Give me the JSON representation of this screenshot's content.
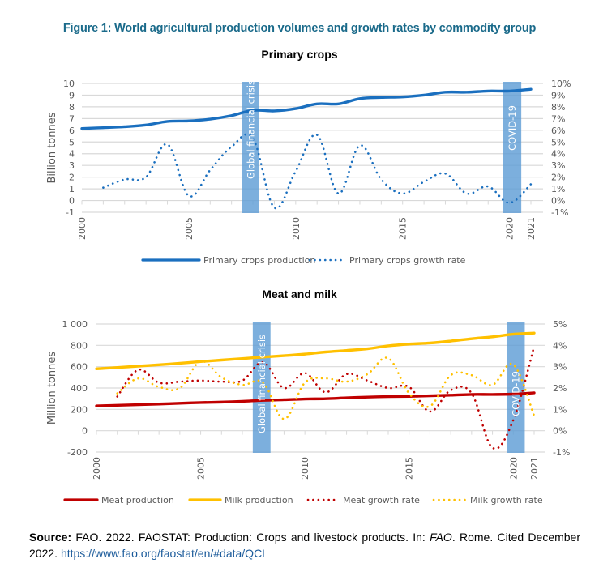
{
  "figure_title": "Figure 1: World agricultural production volumes and growth rates by commodity group",
  "chart_data": [
    {
      "type": "line",
      "title": "Primary crops",
      "ylabel": "Billion tonnes",
      "y2label": "",
      "ylim": [
        -1,
        10
      ],
      "y2lim": [
        -1,
        10
      ],
      "yticks": [
        "-1",
        "0",
        "1",
        "2",
        "3",
        "4",
        "5",
        "6",
        "7",
        "8",
        "9",
        "10"
      ],
      "y2ticks": [
        "-1%",
        "0%",
        "1%",
        "2%",
        "3%",
        "4%",
        "5%",
        "6%",
        "7%",
        "8%",
        "9%",
        "10%"
      ],
      "xticks": [
        "2000",
        "2005",
        "2010",
        "2015",
        "2020",
        "2021"
      ],
      "xlim": [
        2000,
        2021.5
      ],
      "grid": true,
      "legend_position": "bottom",
      "annotations": [
        {
          "label": "Global financial crisis",
          "x_start": 2007.5,
          "x_end": 2008.3
        },
        {
          "label": "COVID-19",
          "x_start": 2019.7,
          "x_end": 2020.55
        }
      ],
      "series": [
        {
          "name": "Primary crops production",
          "style": "solid",
          "color": "#1a6fbf",
          "axis": "left",
          "x": [
            2000,
            2001,
            2002,
            2003,
            2004,
            2005,
            2006,
            2007,
            2008,
            2009,
            2010,
            2011,
            2012,
            2013,
            2014,
            2015,
            2016,
            2017,
            2018,
            2019,
            2020,
            2021
          ],
          "values": [
            6.15,
            6.22,
            6.3,
            6.45,
            6.75,
            6.8,
            6.95,
            7.25,
            7.7,
            7.65,
            7.85,
            8.25,
            8.25,
            8.7,
            8.8,
            8.85,
            9.0,
            9.25,
            9.25,
            9.35,
            9.35,
            9.5
          ]
        },
        {
          "name": "Primary crops growth rate",
          "style": "dotted",
          "color": "#1a6fbf",
          "axis": "right",
          "unit": "%",
          "x": [
            2001,
            2002,
            2003,
            2004,
            2005,
            2006,
            2007,
            2008,
            2009,
            2010,
            2011,
            2012,
            2013,
            2014,
            2015,
            2016,
            2017,
            2018,
            2019,
            2020,
            2021
          ],
          "values": [
            1.1,
            1.8,
            2.0,
            4.8,
            0.4,
            2.6,
            4.6,
            5.3,
            -0.6,
            2.5,
            5.6,
            0.6,
            4.7,
            1.8,
            0.6,
            1.6,
            2.3,
            0.6,
            1.2,
            -0.2,
            1.4
          ]
        }
      ]
    },
    {
      "type": "line",
      "title": "Meat and milk",
      "ylabel": "Million tonnes",
      "ylim": [
        -200,
        1000
      ],
      "y2lim": [
        -1,
        5
      ],
      "yticks": [
        "-200",
        "0",
        "200",
        "400",
        "600",
        "800",
        "1 000"
      ],
      "y2ticks": [
        "-1%",
        "0%",
        "1%",
        "2%",
        "3%",
        "4%",
        "5%"
      ],
      "xticks": [
        "2000",
        "2005",
        "2010",
        "2015",
        "2020",
        "2021"
      ],
      "xlim": [
        2000,
        2021.5
      ],
      "grid": true,
      "legend_position": "bottom",
      "annotations": [
        {
          "label": "Global financial crisis",
          "x_start": 2007.5,
          "x_end": 2008.35
        },
        {
          "label": "COVID-19",
          "x_start": 2019.7,
          "x_end": 2020.55
        }
      ],
      "series": [
        {
          "name": "Meat production",
          "style": "solid",
          "color": "#c00000",
          "axis": "left",
          "x": [
            2000,
            2001,
            2002,
            2003,
            2004,
            2005,
            2006,
            2007,
            2008,
            2009,
            2010,
            2011,
            2012,
            2013,
            2014,
            2015,
            2016,
            2017,
            2018,
            2019,
            2020,
            2021
          ],
          "values": [
            232,
            238,
            244,
            250,
            257,
            264,
            268,
            275,
            285,
            290,
            297,
            300,
            308,
            315,
            320,
            322,
            327,
            333,
            340,
            340,
            343,
            355
          ]
        },
        {
          "name": "Milk production",
          "style": "solid",
          "color": "#ffc000",
          "axis": "left",
          "x": [
            2000,
            2001,
            2002,
            2003,
            2004,
            2005,
            2006,
            2007,
            2008,
            2009,
            2010,
            2011,
            2012,
            2013,
            2014,
            2015,
            2016,
            2017,
            2018,
            2019,
            2020,
            2021
          ],
          "values": [
            580,
            592,
            605,
            618,
            632,
            648,
            662,
            676,
            690,
            703,
            718,
            738,
            752,
            768,
            795,
            812,
            822,
            840,
            862,
            880,
            905,
            915
          ]
        },
        {
          "name": "Meat growth rate",
          "style": "dotted",
          "color": "#c00000",
          "axis": "right",
          "unit": "%",
          "x": [
            2001,
            2002,
            2003,
            2004,
            2005,
            2006,
            2007,
            2008,
            2009,
            2010,
            2011,
            2012,
            2013,
            2014,
            2015,
            2016,
            2017,
            2018,
            2019,
            2020,
            2021
          ],
          "values": [
            1.6,
            2.85,
            2.25,
            2.3,
            2.35,
            2.3,
            2.35,
            3.2,
            2.0,
            2.7,
            1.8,
            2.65,
            2.35,
            2.0,
            2.05,
            0.9,
            1.9,
            1.75,
            -0.8,
            0.5,
            3.95
          ]
        },
        {
          "name": "Milk growth rate",
          "style": "dotted",
          "color": "#ffc000",
          "axis": "right",
          "unit": "%",
          "x": [
            2001,
            2002,
            2003,
            2004,
            2005,
            2006,
            2007,
            2008,
            2009,
            2010,
            2011,
            2012,
            2013,
            2014,
            2015,
            2016,
            2017,
            2018,
            2019,
            2020,
            2021
          ],
          "values": [
            1.75,
            2.45,
            2.05,
            2.0,
            3.25,
            2.5,
            2.15,
            2.25,
            0.55,
            2.25,
            2.45,
            2.3,
            2.65,
            3.4,
            1.75,
            1.15,
            2.6,
            2.6,
            2.15,
            3.1,
            0.7
          ]
        }
      ]
    }
  ],
  "source": {
    "label": "Source:",
    "text_before_italic": " FAO. 2022. FAOSTAT: Production: Crops and livestock products. In: ",
    "italic": "FAO",
    "text_after_italic": ". Rome. Cited December 2022. ",
    "link": "https://www.fao.org/faostat/en/#data/QCL"
  }
}
